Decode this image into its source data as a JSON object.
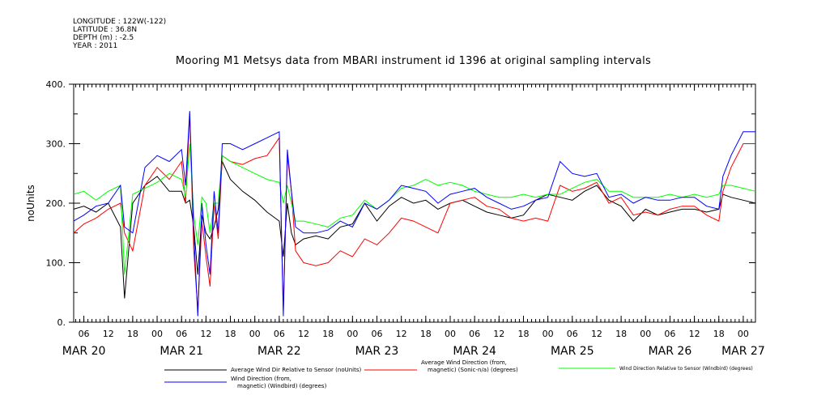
{
  "metadata": {
    "longitude": "LONGITUDE : 122W(-122)",
    "latitude": "LATITUDE : 36.8N",
    "depth": "DEPTH (m) : -2.5",
    "year": "YEAR : 2011"
  },
  "colors": {
    "series_black": "#000000",
    "series_red": "#ff0000",
    "series_green": "#00ff00",
    "series_blue": "#0000ff"
  },
  "chart_data": {
    "type": "line",
    "title": "Mooring M1 Metsys data from MBARI instrument id 1396 at original sampling intervals",
    "ylabel": "noUnits",
    "ylim": [
      0,
      400
    ],
    "yticks": [
      "0.",
      "100.",
      "200.",
      "300.",
      "400."
    ],
    "x_unit": "hours after 2011-03-20 00:00",
    "xlim": [
      3.5,
      171
    ],
    "hour_ticks": [
      {
        "x": 6,
        "label": "06"
      },
      {
        "x": 12,
        "label": "12"
      },
      {
        "x": 18,
        "label": "18"
      },
      {
        "x": 24,
        "label": "00"
      },
      {
        "x": 30,
        "label": "06"
      },
      {
        "x": 36,
        "label": "12"
      },
      {
        "x": 42,
        "label": "18"
      },
      {
        "x": 48,
        "label": "00"
      },
      {
        "x": 54,
        "label": "06"
      },
      {
        "x": 60,
        "label": "12"
      },
      {
        "x": 66,
        "label": "18"
      },
      {
        "x": 72,
        "label": "00"
      },
      {
        "x": 78,
        "label": "06"
      },
      {
        "x": 84,
        "label": "12"
      },
      {
        "x": 90,
        "label": "18"
      },
      {
        "x": 96,
        "label": "00"
      },
      {
        "x": 102,
        "label": "06"
      },
      {
        "x": 108,
        "label": "12"
      },
      {
        "x": 114,
        "label": "18"
      },
      {
        "x": 120,
        "label": "00"
      },
      {
        "x": 126,
        "label": "06"
      },
      {
        "x": 132,
        "label": "12"
      },
      {
        "x": 138,
        "label": "18"
      },
      {
        "x": 144,
        "label": "00"
      },
      {
        "x": 150,
        "label": "06"
      },
      {
        "x": 156,
        "label": "12"
      },
      {
        "x": 162,
        "label": "18"
      },
      {
        "x": 168,
        "label": "00"
      }
    ],
    "day_labels": [
      {
        "x": 6,
        "label": "MAR 20"
      },
      {
        "x": 30,
        "label": "MAR 21"
      },
      {
        "x": 54,
        "label": "MAR 22"
      },
      {
        "x": 78,
        "label": "MAR 23"
      },
      {
        "x": 102,
        "label": "MAR 24"
      },
      {
        "x": 126,
        "label": "MAR 25"
      },
      {
        "x": 150,
        "label": "MAR 26"
      },
      {
        "x": 168,
        "label": "MAR 27"
      }
    ],
    "series": [
      {
        "name": "Average Wind Dir Relative to Sensor (noUnits)",
        "color": "#000000",
        "x": [
          3.5,
          6,
          9,
          12,
          15,
          16,
          18,
          21,
          24,
          27,
          30,
          31,
          32,
          33,
          34,
          35,
          36,
          37,
          38,
          39,
          40,
          42,
          45,
          48,
          51,
          54,
          55,
          56,
          57,
          58,
          60,
          63,
          66,
          69,
          72,
          75,
          78,
          81,
          84,
          87,
          90,
          93,
          96,
          99,
          102,
          105,
          108,
          111,
          114,
          117,
          120,
          123,
          126,
          129,
          132,
          135,
          138,
          141,
          144,
          147,
          150,
          153,
          156,
          159,
          162,
          163,
          165,
          168,
          171
        ],
        "y": [
          190,
          195,
          185,
          200,
          160,
          40,
          200,
          230,
          245,
          220,
          220,
          200,
          205,
          160,
          80,
          180,
          150,
          140,
          160,
          190,
          270,
          240,
          220,
          205,
          185,
          170,
          110,
          200,
          150,
          130,
          140,
          145,
          140,
          160,
          165,
          200,
          170,
          195,
          210,
          200,
          205,
          190,
          200,
          205,
          195,
          185,
          180,
          175,
          180,
          205,
          215,
          210,
          205,
          220,
          230,
          205,
          195,
          170,
          190,
          180,
          185,
          190,
          190,
          185,
          190,
          215,
          210,
          205,
          200
        ]
      },
      {
        "name": "Average Wind Direction (from, magnetic) (Sonic-n/a) (degrees)",
        "color": "#ff0000",
        "x": [
          3.5,
          6,
          9,
          12,
          15,
          16,
          18,
          21,
          24,
          27,
          30,
          31,
          32,
          33,
          34,
          35,
          36,
          37,
          38,
          39,
          40,
          42,
          45,
          48,
          51,
          54,
          55,
          56,
          57,
          58,
          60,
          63,
          66,
          69,
          72,
          75,
          78,
          81,
          84,
          87,
          90,
          93,
          96,
          99,
          102,
          105,
          108,
          111,
          114,
          117,
          120,
          123,
          126,
          129,
          132,
          135,
          138,
          141,
          144,
          147,
          150,
          153,
          156,
          159,
          162,
          163,
          165,
          168,
          171
        ],
        "y": [
          150,
          165,
          175,
          190,
          200,
          150,
          120,
          230,
          260,
          240,
          270,
          200,
          350,
          120,
          20,
          170,
          110,
          60,
          200,
          140,
          280,
          270,
          265,
          275,
          280,
          310,
          20,
          280,
          220,
          120,
          100,
          95,
          100,
          120,
          110,
          140,
          130,
          150,
          175,
          170,
          160,
          150,
          200,
          205,
          210,
          195,
          190,
          175,
          170,
          175,
          170,
          230,
          220,
          225,
          235,
          200,
          210,
          180,
          185,
          180,
          190,
          195,
          195,
          180,
          170,
          220,
          260,
          300,
          300
        ]
      },
      {
        "name": "Wind Direction Relative to Sensor (Windbird) (degrees)",
        "color": "#00ff00",
        "x": [
          3.5,
          6,
          9,
          12,
          15,
          16,
          18,
          21,
          24,
          27,
          30,
          31,
          32,
          33,
          34,
          35,
          36,
          37,
          38,
          39,
          40,
          42,
          45,
          48,
          51,
          54,
          55,
          56,
          57,
          58,
          60,
          63,
          66,
          69,
          72,
          75,
          78,
          81,
          84,
          87,
          90,
          93,
          96,
          99,
          102,
          105,
          108,
          111,
          114,
          117,
          120,
          123,
          126,
          129,
          132,
          135,
          138,
          141,
          144,
          147,
          150,
          153,
          156,
          159,
          162,
          163,
          165,
          168,
          171
        ],
        "y": [
          215,
          220,
          205,
          220,
          230,
          80,
          215,
          225,
          235,
          250,
          240,
          210,
          300,
          180,
          130,
          210,
          200,
          150,
          200,
          200,
          280,
          270,
          260,
          250,
          240,
          235,
          200,
          230,
          200,
          170,
          170,
          165,
          160,
          175,
          180,
          205,
          190,
          205,
          225,
          230,
          240,
          230,
          235,
          230,
          220,
          215,
          210,
          210,
          215,
          210,
          215,
          215,
          225,
          235,
          240,
          220,
          220,
          210,
          210,
          210,
          215,
          210,
          215,
          210,
          215,
          230,
          230,
          225,
          220
        ]
      },
      {
        "name": "Wind Direction (from, magnetic) (Windbird) (degrees)",
        "color": "#0000ff",
        "x": [
          3.5,
          6,
          9,
          12,
          15,
          16,
          18,
          21,
          24,
          27,
          30,
          31,
          32,
          33,
          34,
          35,
          36,
          37,
          38,
          39,
          40,
          42,
          45,
          48,
          51,
          54,
          55,
          56,
          57,
          58,
          60,
          63,
          66,
          69,
          72,
          75,
          78,
          81,
          84,
          87,
          90,
          93,
          96,
          99,
          102,
          105,
          108,
          111,
          114,
          117,
          120,
          123,
          126,
          129,
          132,
          135,
          138,
          141,
          144,
          147,
          150,
          153,
          156,
          159,
          162,
          163,
          165,
          168,
          171
        ],
        "y": [
          170,
          180,
          195,
          200,
          230,
          160,
          150,
          260,
          280,
          270,
          290,
          230,
          355,
          150,
          10,
          200,
          130,
          80,
          220,
          150,
          300,
          300,
          290,
          300,
          310,
          320,
          10,
          290,
          220,
          160,
          150,
          150,
          155,
          170,
          160,
          200,
          190,
          205,
          230,
          225,
          220,
          200,
          215,
          220,
          225,
          210,
          200,
          190,
          195,
          205,
          210,
          270,
          250,
          245,
          250,
          210,
          215,
          200,
          210,
          205,
          205,
          210,
          210,
          195,
          190,
          245,
          280,
          320,
          320
        ]
      }
    ],
    "legend": [
      {
        "text": "Average Wind Dir Relative to Sensor (noUnits)",
        "color": "#000000"
      },
      {
        "text": "Average Wind Direction (from, magnetic) (Sonic-n/a) (degrees)",
        "color": "#ff0000"
      },
      {
        "text": "Wind Direction Relative to Sensor (Windbird) (degrees)",
        "color": "#00ff00"
      },
      {
        "text": "Wind Direction (from, magnetic) (Windbird) (degrees)",
        "color": "#0000ff"
      }
    ],
    "grid": false,
    "legend_position": "bottom"
  }
}
